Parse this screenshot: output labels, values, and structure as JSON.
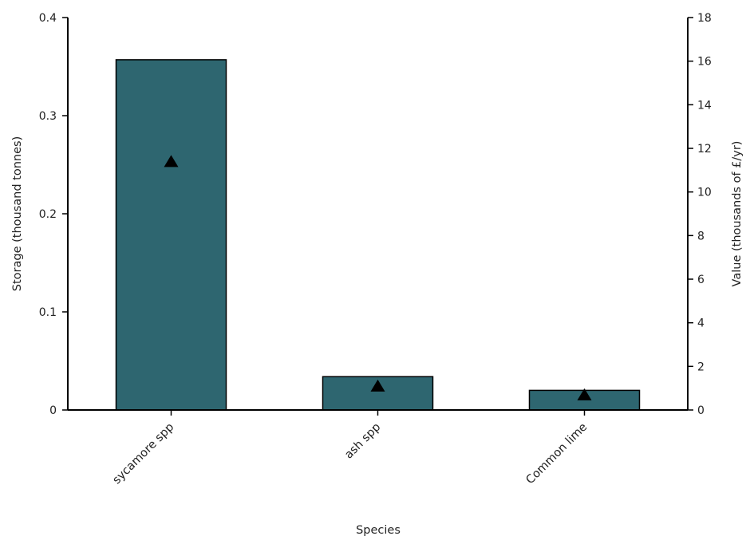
{
  "chart_data": {
    "type": "bar",
    "xlabel": "Species",
    "ylabel_left": "Storage (thousand tonnes)",
    "ylabel_right": "Value (thousands of £/yr)",
    "categories": [
      "sycamore spp",
      "ash spp",
      "Common lime"
    ],
    "series": [
      {
        "name": "",
        "kind": "bar",
        "axis": "left",
        "color": "#2e6670",
        "values": [
          0.357,
          0.034,
          0.02
        ]
      },
      {
        "name": "",
        "kind": "marker-triangle",
        "axis": "right",
        "color": "#000000",
        "values": [
          11.4,
          1.1,
          0.7
        ]
      }
    ],
    "ylim_left": [
      0,
      0.4
    ],
    "ylim_right": [
      0,
      18
    ],
    "yticks_left": [
      "0",
      "0.1",
      "0.2",
      "0.3",
      "0.4"
    ],
    "yticks_right": [
      "0",
      "2",
      "4",
      "6",
      "8",
      "10",
      "12",
      "14",
      "16",
      "18"
    ],
    "grid": false,
    "legend": "none"
  }
}
